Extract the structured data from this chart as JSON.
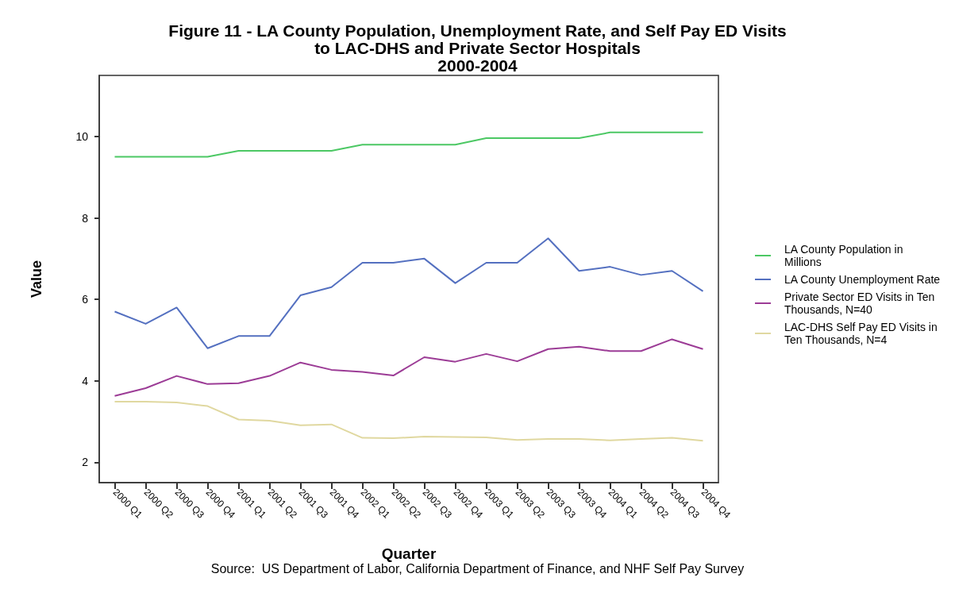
{
  "chart_data": {
    "type": "line",
    "title": "Figure 11 - LA County Population, Unemployment Rate, and Self Pay ED Visits\nto LAC-DHS and Private Sector Hospitals\n2000-2004",
    "xlabel": "Quarter",
    "ylabel": "Value",
    "categories": [
      "2000 Q1",
      "2000 Q2",
      "2000 Q3",
      "2000 Q4",
      "2001 Q1",
      "2001 Q2",
      "2001 Q3",
      "2001 Q4",
      "2002 Q1",
      "2002 Q2",
      "2002 Q3",
      "2002 Q4",
      "2003 Q1",
      "2003 Q2",
      "2003 Q3",
      "2003 Q4",
      "2004 Q1",
      "2004 Q2",
      "2004 Q3",
      "2004 Q4"
    ],
    "series": [
      {
        "name": "LA County Population in Millions",
        "color": "#4cc864",
        "values": [
          9.5,
          9.5,
          9.5,
          9.5,
          9.65,
          9.65,
          9.65,
          9.65,
          9.8,
          9.8,
          9.8,
          9.8,
          9.96,
          9.96,
          9.96,
          9.96,
          10.1,
          10.1,
          10.1,
          10.1
        ]
      },
      {
        "name": "LA County Unemployment Rate",
        "color": "#5470c0",
        "values": [
          5.7,
          5.4,
          5.8,
          4.8,
          5.1,
          5.1,
          6.1,
          6.3,
          6.9,
          6.9,
          7.0,
          6.4,
          6.9,
          6.9,
          7.5,
          6.7,
          6.8,
          6.6,
          6.7,
          6.2
        ]
      },
      {
        "name": "Private Sector ED Visits in Ten Thousands, N=40",
        "color": "#9c3c96",
        "values": [
          3.63,
          3.82,
          4.12,
          3.92,
          3.94,
          4.12,
          4.45,
          4.27,
          4.22,
          4.13,
          4.58,
          4.47,
          4.66,
          4.48,
          4.78,
          4.84,
          4.73,
          4.73,
          5.02,
          4.78
        ]
      },
      {
        "name": "LAC-DHS Self Pay ED Visits in Ten Thousands, N=4",
        "color": "#e0d8a0",
        "values": [
          3.49,
          3.49,
          3.47,
          3.38,
          3.05,
          3.02,
          2.91,
          2.93,
          2.6,
          2.59,
          2.63,
          2.62,
          2.61,
          2.55,
          2.57,
          2.57,
          2.54,
          2.57,
          2.6,
          2.53
        ]
      }
    ],
    "ylim": [
      1.5,
      11.5
    ],
    "yticks": [
      2,
      4,
      6,
      8,
      10
    ],
    "grid": false,
    "legend": "right",
    "marker": "none",
    "line_style": "solid",
    "annotations": [
      "Source:  US Department of Labor, California Department of Finance, and NHF Self Pay Survey"
    ]
  }
}
